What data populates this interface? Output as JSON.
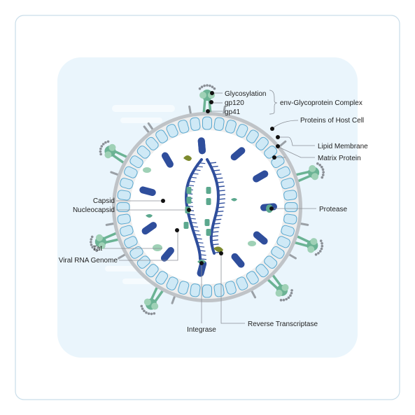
{
  "diagram": {
    "labels": {
      "glycosylation": "Glycosylation",
      "gp120": "gp120",
      "gp41": "gp41",
      "env_complex": "env-Glycoprotein Complex",
      "host_proteins": "Proteins of Host Cell",
      "lipid_membrane": "Lipid Membrane",
      "matrix_protein": "Matrix Protein",
      "capsid": "Capsid",
      "nucleocapsid": "Nucleocapsid",
      "protease": "Protease",
      "tat": "Tat",
      "viral_rna_genome": "Viral RNA Genome",
      "integrase": "Integrase",
      "reverse_transcriptase": "Reverse Transcriptase"
    },
    "colors": {
      "frame_border": "#c9dde9",
      "backdrop": "#eaf5fc",
      "membrane_outer": "#bfc3c7",
      "membrane_inner": "#eeeeee",
      "matrix_bead_fill": "#cfe9f6",
      "matrix_bead_stroke": "#5aa8cf",
      "interior": "#ffffff",
      "capsid_blue": "#2f4e9c",
      "nucleocapsid_teal": "#5ca88e",
      "spike_green": "#6bb394",
      "spike_light": "#9fd1b6",
      "olive": "#7d8a2e",
      "glyco_grey": "#8a8f96"
    }
  }
}
